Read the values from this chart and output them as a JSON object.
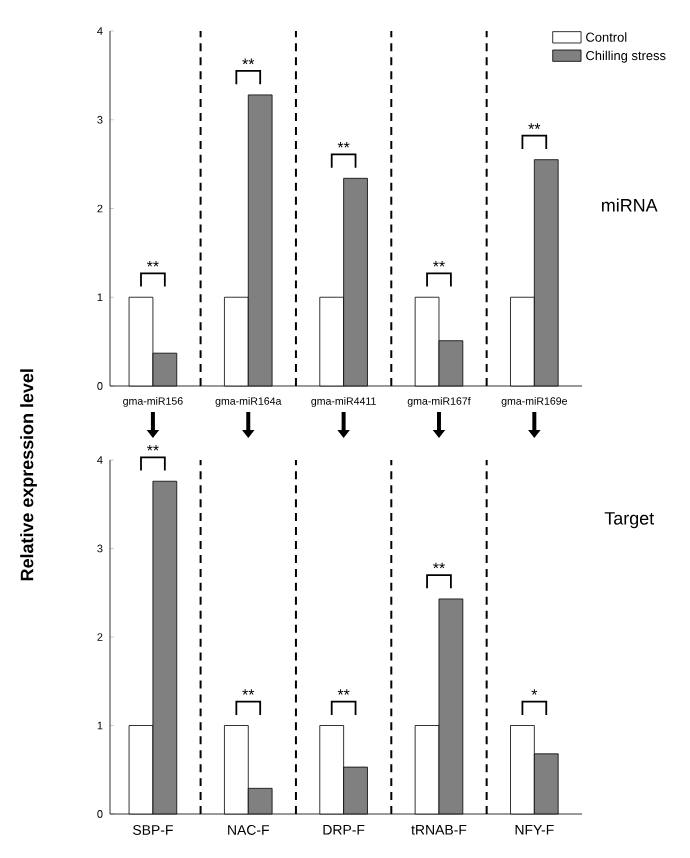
{
  "chart_data": [
    {
      "type": "bar",
      "ylabel": "Relative expression level",
      "categories": [
        "gma-miR156",
        "gma-miR164a",
        "gma-miR4411",
        "gma-miR167f",
        "gma-miR169e"
      ],
      "series": [
        {
          "name": "Control",
          "color": "#ffffff",
          "values": [
            1,
            1,
            1,
            1,
            1
          ]
        },
        {
          "name": "Chilling stress",
          "color": "#808080",
          "values": [
            0.37,
            3.28,
            2.34,
            0.51,
            2.55
          ]
        }
      ],
      "ylim": [
        0,
        4
      ],
      "yticks": [
        0,
        1,
        2,
        3,
        4
      ],
      "legend": "top right",
      "annotations": [
        "**",
        "**",
        "**",
        "**",
        "**",
        "miRNA"
      ]
    },
    {
      "type": "bar",
      "categories": [
        "SBP-F",
        "NAC-F",
        "DRP-F",
        "tRNAB-F",
        "NFY-F"
      ],
      "series": [
        {
          "color": "#ffffff",
          "values": [
            1,
            1,
            1,
            1,
            1
          ]
        },
        {
          "color": "#808080",
          "values": [
            3.76,
            0.29,
            0.53,
            2.43,
            0.68
          ]
        }
      ],
      "ylim": [
        0,
        4
      ],
      "yticks": [
        0,
        1,
        2,
        3,
        4
      ],
      "annotations": [
        "**",
        "**",
        "**",
        "**",
        "*",
        "Target"
      ]
    }
  ]
}
